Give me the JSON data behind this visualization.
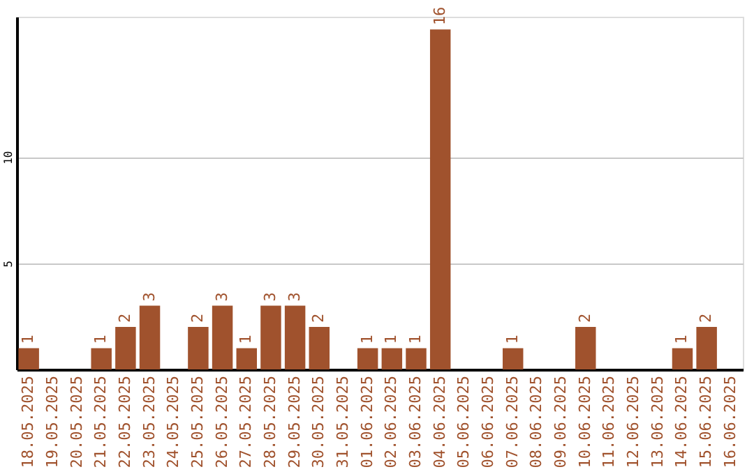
{
  "chart_data": {
    "type": "bar",
    "categories": [
      "18.05.2025",
      "19.05.2025",
      "20.05.2025",
      "21.05.2025",
      "22.05.2025",
      "23.05.2025",
      "24.05.2025",
      "25.05.2025",
      "26.05.2025",
      "27.05.2025",
      "28.05.2025",
      "29.05.2025",
      "30.05.2025",
      "31.05.2025",
      "01.06.2025",
      "02.06.2025",
      "03.06.2025",
      "04.06.2025",
      "05.06.2025",
      "06.06.2025",
      "07.06.2025",
      "08.06.2025",
      "09.06.2025",
      "10.06.2025",
      "11.06.2025",
      "12.06.2025",
      "13.06.2025",
      "14.06.2025",
      "15.06.2025",
      "16.06.2025"
    ],
    "values": [
      1,
      0,
      0,
      1,
      2,
      3,
      0,
      2,
      3,
      1,
      3,
      3,
      2,
      0,
      1,
      1,
      1,
      16,
      0,
      0,
      1,
      0,
      0,
      2,
      0,
      0,
      0,
      1,
      2,
      0
    ],
    "value_labels": [
      "1",
      null,
      null,
      "1",
      "2",
      "3",
      null,
      "2",
      "3",
      "1",
      "3",
      "3",
      "2",
      null,
      "1",
      "1",
      "1",
      "16",
      null,
      null,
      "1",
      null,
      null,
      "2",
      null,
      null,
      null,
      "1",
      "2",
      null
    ],
    "color": "#a0522d",
    "ylim": [
      0,
      16.6
    ],
    "yticks": [
      5,
      10
    ],
    "grid": "y"
  }
}
